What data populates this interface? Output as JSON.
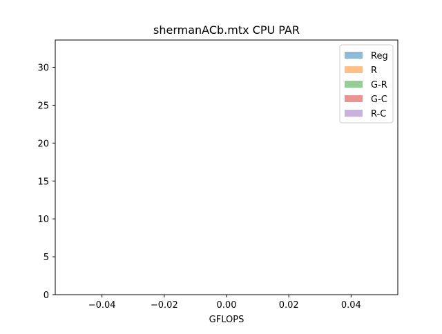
{
  "chart_data": {
    "type": "bar",
    "title": "shermanACb.mtx CPU PAR",
    "xlabel": "GFLOPS",
    "ylabel": "",
    "xlim": [
      -0.055,
      0.055
    ],
    "ylim": [
      0,
      33.6
    ],
    "xticks": [
      -0.04,
      -0.02,
      0.0,
      0.02,
      0.04
    ],
    "xtick_labels": [
      "−0.04",
      "−0.02",
      "0.00",
      "0.02",
      "0.04"
    ],
    "yticks": [
      0,
      5,
      10,
      15,
      20,
      25,
      30
    ],
    "ytick_labels": [
      "0",
      "5",
      "10",
      "15",
      "20",
      "25",
      "30"
    ],
    "grid": false,
    "legend_position": "top-right",
    "series": [
      {
        "name": "Reg",
        "color": "#1f77b4",
        "alpha": 0.5,
        "values": []
      },
      {
        "name": "R",
        "color": "#ff7f0e",
        "alpha": 0.5,
        "values": []
      },
      {
        "name": "G-R",
        "color": "#2ca02c",
        "alpha": 0.5,
        "values": []
      },
      {
        "name": "G-C",
        "color": "#d62728",
        "alpha": 0.5,
        "values": []
      },
      {
        "name": "R-C",
        "color": "#9467bd",
        "alpha": 0.5,
        "values": []
      }
    ]
  }
}
